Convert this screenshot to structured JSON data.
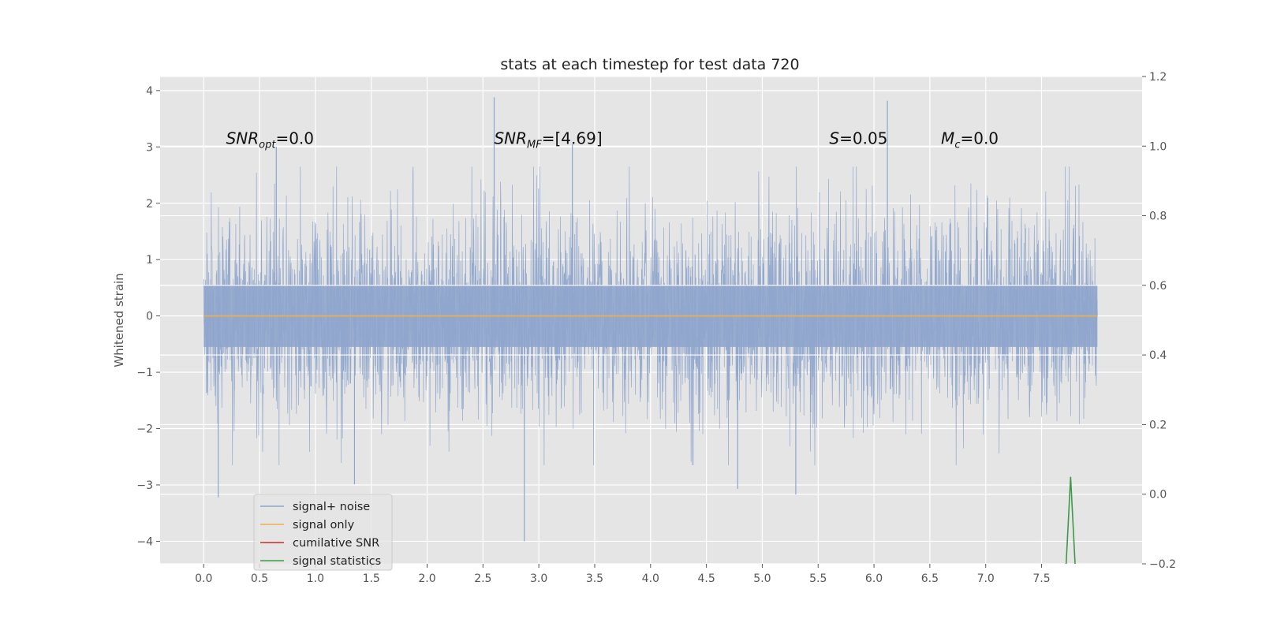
{
  "chart_data": {
    "type": "line",
    "title": "stats at each timestep for test data 720",
    "xlabel": "",
    "ylabel": "Whitened strain",
    "xlim": [
      -0.39,
      8.4
    ],
    "ylim": [
      -4.4,
      4.25
    ],
    "y2lim": [
      -0.2,
      1.2
    ],
    "x_ticks": [
      0.0,
      0.5,
      1.0,
      1.5,
      2.0,
      2.5,
      3.0,
      3.5,
      4.0,
      4.5,
      5.0,
      5.5,
      6.0,
      6.5,
      7.0,
      7.5
    ],
    "x_tick_labels": [
      "0.0",
      "0.5",
      "1.0",
      "1.5",
      "2.0",
      "2.5",
      "3.0",
      "3.5",
      "4.0",
      "4.5",
      "5.0",
      "5.5",
      "6.0",
      "6.5",
      "7.0",
      "7.5"
    ],
    "y_ticks": [
      -4,
      -3,
      -2,
      -1,
      0,
      1,
      2,
      3,
      4
    ],
    "y_tick_labels": [
      "−4",
      "−3",
      "−2",
      "−1",
      "0",
      "1",
      "2",
      "3",
      "4"
    ],
    "y2_ticks": [
      -0.2,
      0.0,
      0.2,
      0.4,
      0.6,
      0.8,
      1.0,
      1.2
    ],
    "y2_tick_labels": [
      "−0.2",
      "0.0",
      "0.2",
      "0.4",
      "0.6",
      "0.8",
      "1.0",
      "1.2"
    ],
    "grid": true,
    "legend_location": "lower-left",
    "series": [
      {
        "name": "signal+ noise",
        "color": "#8fa5cc",
        "kind": "noise",
        "x_range": [
          0.0,
          8.0
        ],
        "amplitude": 1.0,
        "peaks": [
          {
            "x": 2.6,
            "y": 3.88
          },
          {
            "x": 6.12,
            "y": 3.82
          },
          {
            "x": 2.87,
            "y": -4.0
          },
          {
            "x": 0.13,
            "y": -3.22
          },
          {
            "x": 1.35,
            "y": -2.99
          },
          {
            "x": 4.78,
            "y": -3.07
          },
          {
            "x": 5.3,
            "y": -3.17
          },
          {
            "x": 0.65,
            "y": 3.0
          },
          {
            "x": 3.3,
            "y": 3.05
          }
        ]
      },
      {
        "name": "signal only",
        "color": "#ecae4e",
        "x": [
          0.0,
          8.0
        ],
        "y": [
          0.0,
          0.0
        ]
      },
      {
        "name": "cumilative SNR",
        "color": "#d62728",
        "x": [],
        "y": []
      },
      {
        "name": "signal statistics",
        "color": "#3d9a48",
        "axis": "right",
        "x": [
          7.72,
          7.76,
          7.8
        ],
        "y": [
          -0.2,
          0.05,
          -0.2
        ]
      }
    ],
    "annotations": [
      {
        "text": "SNR_opt=0.0",
        "x": 0.2,
        "y": 3.05
      },
      {
        "text": "SNR_MF=[4.69]",
        "x": 2.6,
        "y": 3.05
      },
      {
        "text": "S=0.05",
        "x": 5.6,
        "y": 3.05
      },
      {
        "text": "M_c=0.0",
        "x": 6.6,
        "y": 3.05
      }
    ]
  }
}
